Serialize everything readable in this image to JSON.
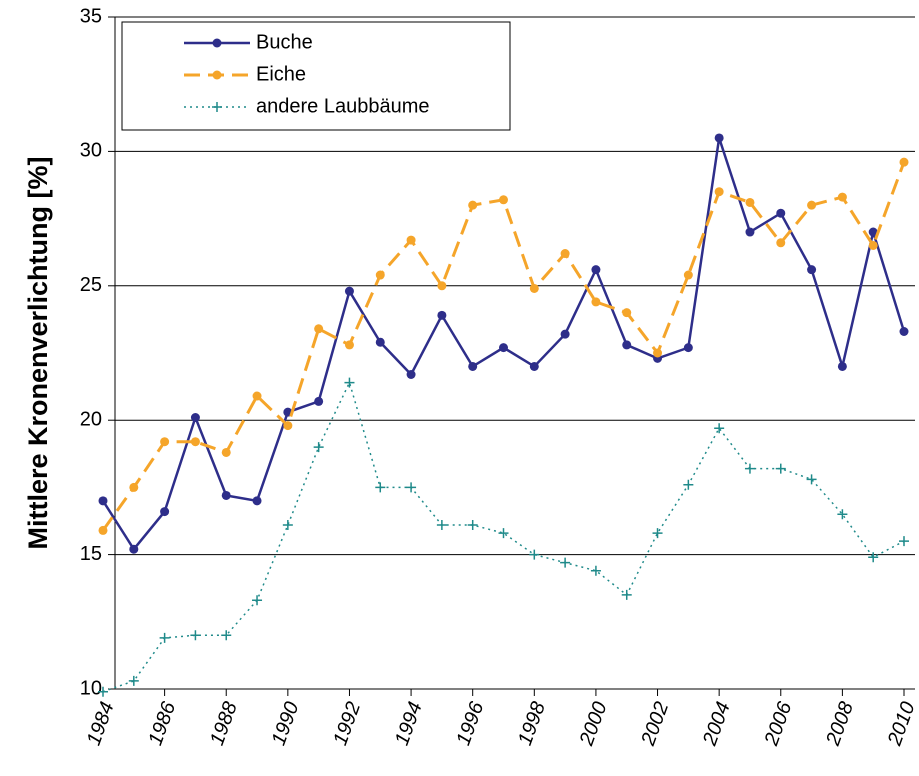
{
  "chart_data": {
    "type": "line",
    "ylabel": "Mittlere Kronenverlichtung [%]",
    "xlim": [
      1984,
      2010
    ],
    "xticks": [
      1984,
      1986,
      1988,
      1990,
      1992,
      1994,
      1996,
      1998,
      2000,
      2002,
      2004,
      2006,
      2008,
      2010
    ],
    "ylim": [
      10,
      35
    ],
    "yticks": [
      10,
      15,
      20,
      25,
      30,
      35
    ],
    "grid": true,
    "legend": "upper left",
    "x": [
      1984,
      1985,
      1986,
      1987,
      1988,
      1989,
      1990,
      1991,
      1992,
      1993,
      1994,
      1995,
      1996,
      1997,
      1998,
      1999,
      2000,
      2001,
      2002,
      2003,
      2004,
      2005,
      2006,
      2007,
      2008,
      2009,
      2010
    ],
    "series": [
      {
        "name": "Buche",
        "color": "#2e2e8a",
        "linestyle": "solid",
        "marker": "circle",
        "values": [
          17.0,
          15.2,
          16.6,
          20.1,
          17.2,
          17.0,
          20.3,
          20.7,
          24.8,
          22.9,
          21.7,
          23.9,
          22.0,
          22.7,
          22.0,
          23.2,
          25.6,
          22.8,
          22.3,
          22.7,
          30.5,
          27.0,
          27.7,
          25.6,
          22.0,
          27.0,
          23.3
        ]
      },
      {
        "name": "Eiche",
        "color": "#f5a52a",
        "linestyle": "dashed",
        "marker": "circle",
        "values": [
          15.9,
          17.5,
          19.2,
          19.2,
          18.8,
          20.9,
          19.8,
          23.4,
          22.8,
          25.4,
          26.7,
          25.0,
          28.0,
          28.2,
          24.9,
          26.2,
          24.4,
          24.0,
          22.5,
          25.4,
          28.5,
          28.1,
          26.6,
          28.0,
          28.3,
          26.5,
          29.6
        ]
      },
      {
        "name": "andere Laubbäume",
        "color": "#1f8a8a",
        "linestyle": "dotted",
        "marker": "plus",
        "values": [
          9.9,
          10.3,
          11.9,
          12.0,
          12.0,
          13.3,
          16.1,
          19.0,
          21.4,
          17.5,
          17.5,
          16.1,
          16.1,
          15.8,
          15.0,
          14.7,
          14.4,
          13.5,
          15.8,
          17.6,
          19.7,
          18.2,
          18.2,
          17.8,
          16.5,
          14.9,
          15.5
        ]
      }
    ]
  }
}
